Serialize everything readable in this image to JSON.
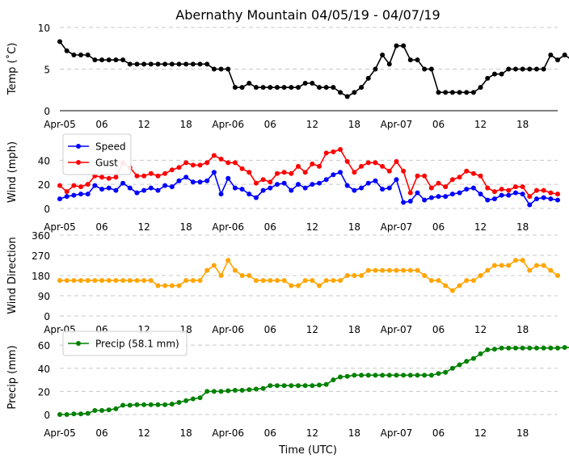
{
  "title": "Abernathy Mountain 04/05/19 - 04/07/19",
  "xlabel": "Time (UTC)",
  "xticks": [
    "Apr-05",
    "06",
    "12",
    "18",
    "Apr-06",
    "06",
    "12",
    "18",
    "Apr-07",
    "06",
    "12",
    "18"
  ],
  "chart_data": [
    {
      "type": "line",
      "name": "temperature",
      "ylabel": "Temp (˚C)",
      "ylim": [
        0,
        10
      ],
      "yticks": [
        0,
        5,
        10
      ],
      "x_hours": {
        "start": 0,
        "step": 1
      },
      "series": [
        {
          "name": "Temp",
          "color": "#000000",
          "values": [
            8.3,
            7.2,
            6.7,
            6.7,
            6.7,
            6.1,
            6.1,
            6.1,
            6.1,
            6.1,
            5.6,
            5.6,
            5.6,
            5.6,
            5.6,
            5.6,
            5.6,
            5.6,
            5.6,
            5.6,
            5.6,
            5.6,
            5.0,
            5.0,
            5.0,
            2.8,
            2.8,
            3.3,
            2.8,
            2.8,
            2.8,
            2.8,
            2.8,
            2.8,
            2.8,
            3.3,
            3.3,
            2.8,
            2.8,
            2.8,
            2.2,
            1.7,
            2.2,
            2.8,
            3.9,
            5.0,
            6.7,
            5.6,
            7.8,
            7.8,
            6.1,
            6.1,
            5.0,
            5.0,
            2.2,
            2.2,
            2.2,
            2.2,
            2.2,
            2.2,
            2.8,
            3.9,
            4.4,
            4.4,
            5.0,
            5.0,
            5.0,
            5.0,
            5.0,
            5.0,
            6.7,
            6.1,
            6.7,
            6.1,
            6.1
          ]
        }
      ]
    },
    {
      "type": "line",
      "name": "wind",
      "ylabel": "Wind (mph)",
      "ylim": [
        0,
        55
      ],
      "yticks": [
        0,
        20,
        40
      ],
      "x_hours": {
        "start": 0,
        "step": 1
      },
      "legend": "top-left",
      "series": [
        {
          "name": "Speed",
          "color": "#0000ff",
          "values": [
            8,
            10,
            11,
            12,
            12,
            19,
            16,
            17,
            15,
            21,
            17,
            13,
            15,
            17,
            15,
            19,
            18,
            23,
            26,
            22,
            22,
            23,
            30,
            12,
            25,
            17,
            16,
            12,
            9,
            15,
            17,
            20,
            21,
            15,
            20,
            17,
            20,
            21,
            24,
            28,
            30,
            19,
            15,
            17,
            21,
            23,
            16,
            17,
            24,
            5,
            6,
            13,
            7,
            9,
            10,
            10,
            12,
            13,
            16,
            17,
            12,
            7,
            8,
            11,
            11,
            13,
            12,
            3,
            8,
            9,
            8,
            7
          ],
          "label": "Speed"
        },
        {
          "name": "Gust",
          "color": "#ff0000",
          "values": [
            19,
            14,
            19,
            18,
            20,
            27,
            26,
            25,
            26,
            38,
            34,
            27,
            27,
            29,
            27,
            29,
            32,
            34,
            38,
            36,
            36,
            38,
            44,
            41,
            38,
            38,
            33,
            30,
            21,
            24,
            22,
            29,
            30,
            29,
            35,
            30,
            37,
            35,
            46,
            47,
            49,
            39,
            30,
            35,
            38,
            38,
            35,
            31,
            39,
            31,
            13,
            27,
            27,
            17,
            21,
            18,
            24,
            26,
            31,
            29,
            27,
            17,
            14,
            16,
            15,
            18,
            18,
            10,
            15,
            15,
            13,
            12
          ],
          "label": "Gust"
        }
      ]
    },
    {
      "type": "line",
      "name": "wind-direction",
      "ylabel": "Wind Direction",
      "ylim": [
        0,
        360
      ],
      "yticks": [
        0,
        90,
        180,
        270,
        360
      ],
      "x_hours": {
        "start": 0,
        "step": 1
      },
      "series": [
        {
          "name": "Direction",
          "color": "#ffa500",
          "values": [
            158,
            158,
            158,
            158,
            158,
            158,
            158,
            158,
            158,
            158,
            158,
            158,
            158,
            158,
            135,
            135,
            135,
            135,
            158,
            158,
            158,
            203,
            225,
            180,
            248,
            203,
            180,
            180,
            158,
            158,
            158,
            158,
            158,
            135,
            135,
            158,
            158,
            135,
            158,
            158,
            158,
            180,
            180,
            180,
            203,
            203,
            203,
            203,
            203,
            203,
            203,
            203,
            180,
            158,
            158,
            135,
            113,
            135,
            158,
            158,
            180,
            203,
            225,
            225,
            225,
            248,
            248,
            203,
            225,
            225,
            203,
            180
          ]
        }
      ]
    },
    {
      "type": "line",
      "name": "precipitation",
      "ylabel": "Precip (mm)",
      "ylim": [
        0,
        65
      ],
      "yticks": [
        0,
        20,
        40,
        60
      ],
      "x_hours": {
        "start": 0,
        "step": 1
      },
      "legend": "top-left",
      "series": [
        {
          "name": "Precip",
          "color": "#008000",
          "values": [
            0,
            0,
            0.5,
            0.5,
            1,
            3.5,
            3.5,
            4,
            5,
            8,
            8,
            8.5,
            8.5,
            8.5,
            8.5,
            8.5,
            9,
            10.5,
            12,
            13.5,
            14.5,
            20,
            20,
            20,
            20.5,
            21,
            21,
            21.5,
            22,
            22.5,
            25,
            25,
            25,
            25,
            25,
            25,
            25,
            25.5,
            26,
            30,
            32.5,
            33,
            34,
            34,
            34,
            34,
            34,
            34,
            34,
            34,
            34,
            34,
            34,
            34,
            35.5,
            36.5,
            40,
            43,
            46,
            48.5,
            52.5,
            56,
            56.5,
            57.5,
            57.5,
            57.5,
            57.5,
            57.5,
            57.5,
            57.5,
            57.5,
            57.5,
            58,
            58
          ],
          "label": "Precip (58.1 mm)"
        }
      ]
    }
  ]
}
